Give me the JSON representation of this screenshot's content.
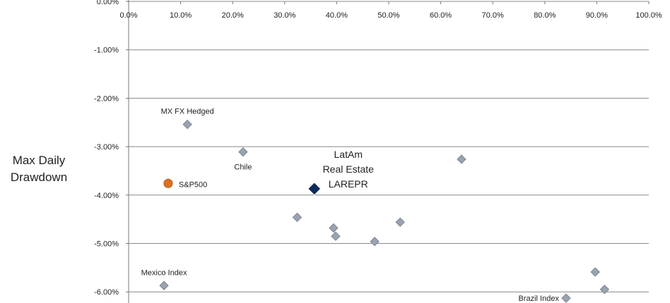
{
  "chart_data": {
    "type": "scatter",
    "title": "",
    "ylabel_lines": [
      "Max Daily",
      "Drawdown"
    ],
    "xlabel": "",
    "x_ticks": [
      "0.0%",
      "10.0%",
      "20.0%",
      "30.0%",
      "40.0%",
      "50.0%",
      "60.0%",
      "70.0%",
      "80.0%",
      "90.0%",
      "100.0%"
    ],
    "y_ticks": [
      "0.00%",
      "-1.00%",
      "-2.00%",
      "-3.00%",
      "-4.00%",
      "-5.00%",
      "-6.00%"
    ],
    "xlim": [
      0,
      100
    ],
    "ylim": [
      -6.2,
      0
    ],
    "grid": "horizontal",
    "points": [
      {
        "x": 11.3,
        "y": -2.54,
        "label": "MX FX Hedged",
        "style": "grey"
      },
      {
        "x": 22.0,
        "y": -3.11,
        "label": "Chile",
        "style": "grey"
      },
      {
        "x": 7.6,
        "y": -3.76,
        "label": "S&P500",
        "style": "orange"
      },
      {
        "x": 35.7,
        "y": -3.87,
        "label": "LatAm\nReal Estate\nLAREPR",
        "style": "navy"
      },
      {
        "x": 64.0,
        "y": -3.26,
        "label": "",
        "style": "grey"
      },
      {
        "x": 32.4,
        "y": -4.46,
        "label": "",
        "style": "grey"
      },
      {
        "x": 39.4,
        "y": -4.68,
        "label": "",
        "style": "grey"
      },
      {
        "x": 39.8,
        "y": -4.85,
        "label": "",
        "style": "grey"
      },
      {
        "x": 52.2,
        "y": -4.56,
        "label": "",
        "style": "grey"
      },
      {
        "x": 47.3,
        "y": -4.96,
        "label": "",
        "style": "grey"
      },
      {
        "x": 6.8,
        "y": -5.87,
        "label": "Mexico Index",
        "style": "grey"
      },
      {
        "x": 89.7,
        "y": -5.59,
        "label": "",
        "style": "grey"
      },
      {
        "x": 91.5,
        "y": -5.95,
        "label": "",
        "style": "grey"
      },
      {
        "x": 84.1,
        "y": -6.13,
        "label": "Brazil Index",
        "style": "grey"
      }
    ],
    "colors": {
      "grey": "#9aa3b0",
      "orange": "#e07020",
      "navy": "#0f2a5a",
      "grid": "#888888"
    }
  }
}
